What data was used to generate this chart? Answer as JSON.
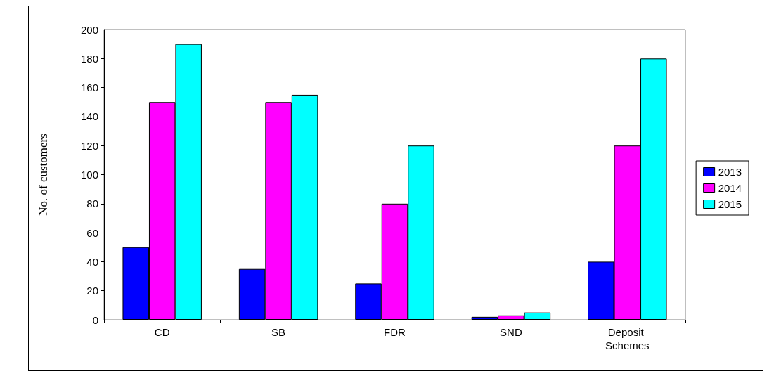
{
  "chart_data": {
    "type": "bar",
    "ylabel": "No. of customers",
    "categories": [
      "CD",
      "SB",
      "FDR",
      "SND",
      "Deposit Schemes"
    ],
    "series": [
      {
        "name": "2013",
        "color": "#0000ff",
        "values": [
          50,
          35,
          25,
          2,
          40
        ]
      },
      {
        "name": "2014",
        "color": "#ff00ff",
        "values": [
          150,
          150,
          80,
          3,
          120
        ]
      },
      {
        "name": "2015",
        "color": "#00ffff",
        "values": [
          190,
          155,
          120,
          5,
          180
        ]
      }
    ],
    "ylim": [
      0,
      200
    ],
    "yticks": [
      0,
      20,
      40,
      60,
      80,
      100,
      120,
      140,
      160,
      180,
      200
    ],
    "grid": false,
    "legend": "right"
  }
}
